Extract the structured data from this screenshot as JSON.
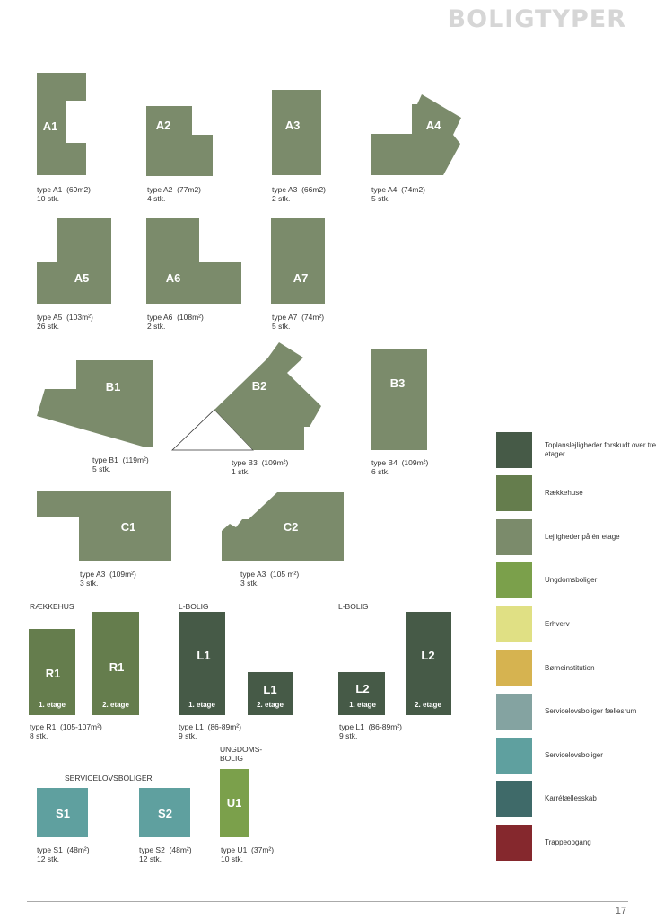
{
  "page": {
    "title": "BOLIGTYPER",
    "number": "17"
  },
  "colors": {
    "toplan": "#465a47",
    "raekkehuse": "#657d4d",
    "lejlighed": "#7b8b6b",
    "ungdom": "#7ba04b",
    "erhverv": "#e0e084",
    "boerne": "#d6b350",
    "servicefaelles": "#84a3a1",
    "service": "#5fa09f",
    "karre": "#3f6a69",
    "trappe": "#85282d"
  },
  "plans": {
    "A1": {
      "label": "A1",
      "type": "type A1",
      "area": "(69m2)",
      "count": "10 stk."
    },
    "A2": {
      "label": "A2",
      "type": "type A2",
      "area": "(77m2)",
      "count": "4 stk."
    },
    "A3": {
      "label": "A3",
      "type": "type A3",
      "area": "(66m2)",
      "count": "2 stk."
    },
    "A4": {
      "label": "A4",
      "type": "type A4",
      "area": "(74m2)",
      "count": "5 stk."
    },
    "A5": {
      "label": "A5",
      "type": "type A5",
      "area": "(103m²)",
      "count": "26 stk."
    },
    "A6": {
      "label": "A6",
      "type": "type A6",
      "area": "(108m²)",
      "count": "2 stk."
    },
    "A7": {
      "label": "A7",
      "type": "type A7",
      "area": "(74m²)",
      "count": "5 stk."
    },
    "B1": {
      "label": "B1",
      "type": "type B1",
      "area": "(119m²)",
      "count": "5 stk."
    },
    "B2": {
      "label": "B2",
      "type": "type B3",
      "area": "(109m²)",
      "count": "1 stk."
    },
    "B3": {
      "label": "B3",
      "type": "type B4",
      "area": "(109m²)",
      "count": "6 stk."
    },
    "C1": {
      "label": "C1",
      "type": "type A3",
      "area": "(109m²)",
      "count": "3 stk."
    },
    "C2": {
      "label": "C2",
      "type": "type A3",
      "area": "(105 m²)",
      "count": "3 stk."
    },
    "R": {
      "label1": "R1",
      "label2": "R1",
      "floor1": "1. etage",
      "floor2": "2. etage",
      "type": "type R1",
      "area": "(105-107m²)",
      "count": "8 stk."
    },
    "L1": {
      "label1": "L1",
      "label2": "L1",
      "floor1": "1. etage",
      "floor2": "2. etage",
      "type": "type L1",
      "area": "(86-89m²)",
      "count": "9 stk."
    },
    "L2": {
      "label1": "L2",
      "label2": "L2",
      "floor1": "1. etage",
      "floor2": "2. etage",
      "type": "type L1",
      "area": "(86-89m²)",
      "count": "9 stk."
    },
    "S1": {
      "label": "S1",
      "type": "type S1",
      "area": "(48m²)",
      "count": "12 stk."
    },
    "S2": {
      "label": "S2",
      "type": "type S2",
      "area": "(48m²)",
      "count": "12 stk."
    },
    "U1": {
      "label": "U1",
      "type": "type U1",
      "area": "(37m²)",
      "count": "10 stk."
    }
  },
  "headings": {
    "raekkehus": "RÆKKEHUS",
    "lbolig1": "L-BOLIG",
    "lbolig2": "L-BOLIG",
    "ungdom_line1": "UNGDOMS-",
    "ungdom_line2": "BOLIG",
    "servicelov": "SERVICELOVSBOLIGER"
  },
  "legend": [
    {
      "label": "Toplanslejligheder forskudt over tre etager.",
      "color": "#465a47"
    },
    {
      "label": "Rækkehuse",
      "color": "#657d4d"
    },
    {
      "label": "Lejligheder på én etage",
      "color": "#7b8b6b"
    },
    {
      "label": "Ungdomsboliger",
      "color": "#7ba04b"
    },
    {
      "label": "Erhverv",
      "color": "#e0e084"
    },
    {
      "label": "Børneinstitution",
      "color": "#d6b350"
    },
    {
      "label": "Servicelovsboliger fællesrum",
      "color": "#84a3a1"
    },
    {
      "label": "Servicelovsboliger",
      "color": "#5fa09f"
    },
    {
      "label": "Karréfællesskab",
      "color": "#3f6a69"
    },
    {
      "label": "Trappeopgang",
      "color": "#85282d"
    }
  ]
}
